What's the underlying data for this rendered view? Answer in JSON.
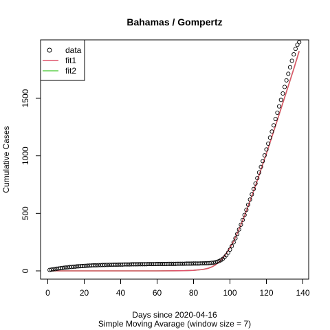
{
  "chart_data": {
    "type": "scatter",
    "title": "Bahamas / Gompertz",
    "xlabel": "Days since 2020-04-16",
    "xlabel2": "Simple Moving Avarage (window size = 7)",
    "ylabel": "Cumulative Cases",
    "xlim": [
      0,
      140
    ],
    "ylim": [
      0,
      1950
    ],
    "x_ticks": [
      0,
      20,
      40,
      60,
      80,
      100,
      120,
      140
    ],
    "y_ticks": [
      0,
      500,
      1000,
      1500
    ],
    "legend_position": "top-left",
    "legend": [
      {
        "label": "data",
        "kind": "point",
        "color": "#000000"
      },
      {
        "label": "fit1",
        "kind": "line",
        "color": "#DF536B"
      },
      {
        "label": "fit2",
        "kind": "line",
        "color": "#61D04F"
      }
    ],
    "series": [
      {
        "name": "data",
        "kind": "points",
        "color": "#000000",
        "x": [
          1,
          2,
          3,
          4,
          5,
          6,
          7,
          8,
          9,
          10,
          11,
          12,
          13,
          14,
          15,
          16,
          17,
          18,
          19,
          20,
          21,
          22,
          23,
          24,
          25,
          26,
          27,
          28,
          29,
          30,
          31,
          32,
          33,
          34,
          35,
          36,
          37,
          38,
          39,
          40,
          41,
          42,
          43,
          44,
          45,
          46,
          47,
          48,
          49,
          50,
          51,
          52,
          53,
          54,
          55,
          56,
          57,
          58,
          59,
          60,
          61,
          62,
          63,
          64,
          65,
          66,
          67,
          68,
          69,
          70,
          71,
          72,
          73,
          74,
          75,
          76,
          77,
          78,
          79,
          80,
          81,
          82,
          83,
          84,
          85,
          86,
          87,
          88,
          89,
          90,
          91,
          92,
          93,
          94,
          95,
          96,
          97,
          98,
          99,
          100,
          101,
          102,
          103,
          104,
          105,
          106,
          107,
          108,
          109,
          110,
          111,
          112,
          113,
          114,
          115,
          116,
          117,
          118,
          119,
          120,
          121,
          122,
          123,
          124,
          125,
          126,
          127,
          128,
          129,
          130,
          131,
          132,
          133,
          134,
          135,
          136,
          137,
          138
        ],
        "y": [
          8,
          11,
          14,
          16,
          19,
          21,
          23,
          25,
          27,
          29,
          31,
          33,
          34,
          36,
          37,
          39,
          40,
          41,
          42,
          43,
          44,
          45,
          46,
          47,
          48,
          48,
          49,
          50,
          50,
          51,
          51,
          52,
          52,
          53,
          53,
          54,
          54,
          54,
          55,
          55,
          55,
          56,
          56,
          56,
          56,
          57,
          57,
          57,
          57,
          58,
          58,
          58,
          58,
          58,
          59,
          59,
          59,
          59,
          59,
          60,
          60,
          60,
          60,
          60,
          60,
          61,
          61,
          61,
          61,
          61,
          62,
          62,
          62,
          62,
          62,
          63,
          63,
          63,
          63,
          64,
          64,
          64,
          64,
          65,
          65,
          66,
          66,
          67,
          68,
          70,
          72,
          75,
          79,
          85,
          93,
          103,
          118,
          136,
          158,
          185,
          215,
          248,
          283,
          321,
          360,
          401,
          443,
          486,
          530,
          575,
          620,
          665,
          712,
          759,
          806,
          855,
          904,
          954,
          1004,
          1055,
          1106,
          1158,
          1211,
          1265,
          1320,
          1375,
          1430,
          1486,
          1542,
          1599,
          1656,
          1713,
          1770,
          1826,
          1882,
          1930,
          1965,
          1988
        ]
      },
      {
        "name": "fit1",
        "kind": "line",
        "color": "#DF536B",
        "x": [
          2,
          20,
          40,
          60,
          70,
          75,
          80,
          85,
          88,
          90,
          92,
          94,
          96,
          98,
          100,
          102,
          104,
          106,
          108,
          110,
          112,
          114,
          116,
          118,
          120,
          125,
          130,
          135,
          138
        ],
        "y": [
          0,
          0,
          0,
          0,
          1,
          2,
          5,
          12,
          22,
          34,
          52,
          77,
          110,
          152,
          200,
          258,
          326,
          400,
          480,
          563,
          650,
          740,
          832,
          926,
          1020,
          1262,
          1508,
          1755,
          1910
        ]
      },
      {
        "name": "fit2",
        "kind": "line",
        "color": "#61D04F",
        "x": [
          2,
          20,
          40,
          60,
          70,
          75,
          80,
          85,
          88,
          90,
          92,
          94,
          96,
          98,
          100,
          102,
          104,
          106,
          108,
          110,
          112,
          114,
          116,
          118,
          120,
          125,
          130,
          135,
          138
        ],
        "y": [
          0,
          0,
          0,
          0,
          1,
          2,
          5,
          12,
          22,
          34,
          52,
          77,
          110,
          152,
          200,
          258,
          326,
          400,
          480,
          563,
          650,
          740,
          832,
          926,
          1020,
          1262,
          1508,
          1755,
          1910
        ]
      }
    ]
  }
}
